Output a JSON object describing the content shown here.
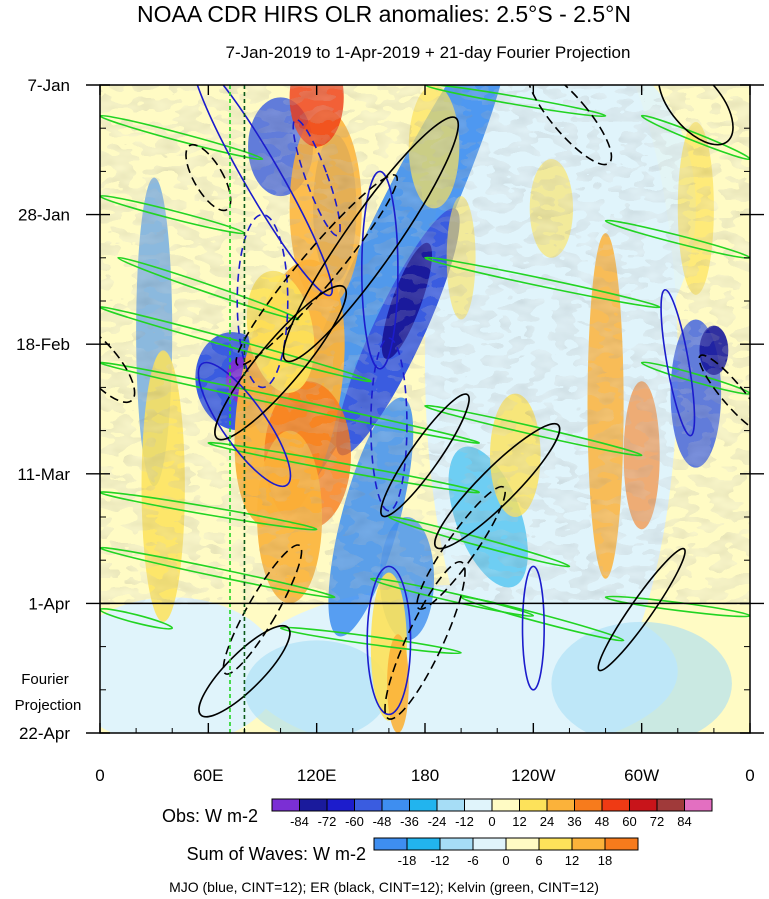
{
  "chart_data": {
    "type": "heatmap",
    "title": "NOAA CDR HIRS OLR anomalies: 2.5°S - 2.5°N",
    "subtitle": "7-Jan-2019 to 1-Apr-2019 + 21-day Fourier Projection",
    "x_ticks": [
      "0",
      "60E",
      "120E",
      "180",
      "120W",
      "60W",
      "0"
    ],
    "x_tick_values": [
      0,
      60,
      120,
      180,
      240,
      300,
      360
    ],
    "xlim": [
      0,
      360
    ],
    "y_ticks": [
      "7-Jan",
      "28-Jan",
      "18-Feb",
      "11-Mar",
      "1-Apr",
      "22-Apr"
    ],
    "y_tick_days": [
      0,
      21,
      42,
      63,
      84,
      105
    ],
    "ylim": [
      0,
      105
    ],
    "projection_start_day": 84,
    "projection_label_line1": "Fourier",
    "projection_label_line2": "Projection",
    "reference_lines_lon": [
      72,
      80
    ],
    "obs_colorbar": {
      "label": "Obs: W m-2",
      "levels": [
        -84,
        -72,
        -60,
        -48,
        -36,
        -24,
        -12,
        0,
        12,
        24,
        36,
        48,
        60,
        72,
        84
      ],
      "colors": [
        "#7b2fd4",
        "#1a1a9c",
        "#1c1ccc",
        "#3a5ce0",
        "#3e8ef0",
        "#22b4ee",
        "#a6ddf6",
        "#e0f4fb",
        "#fffbc4",
        "#fde25a",
        "#fbb23a",
        "#f77b1c",
        "#ef3a14",
        "#c8141a",
        "#a03a3a",
        "#e36fc1"
      ]
    },
    "waves_colorbar": {
      "label": "Sum of Waves: W m-2",
      "levels": [
        -18,
        -12,
        -6,
        0,
        6,
        12,
        18
      ],
      "colors": [
        "#3e8ef0",
        "#22b4ee",
        "#a6ddf6",
        "#e0f4fb",
        "#fffbc4",
        "#fde25a",
        "#fbb23a",
        "#f77b1c"
      ]
    },
    "legend_note": "MJO (blue, CINT=12); ER (black, CINT=12); Kelvin (green, CINT=12)",
    "contours": {
      "kelvin_color": "#22d422",
      "mjo_color": "#1c1ccc",
      "er_color": "#000000"
    }
  }
}
